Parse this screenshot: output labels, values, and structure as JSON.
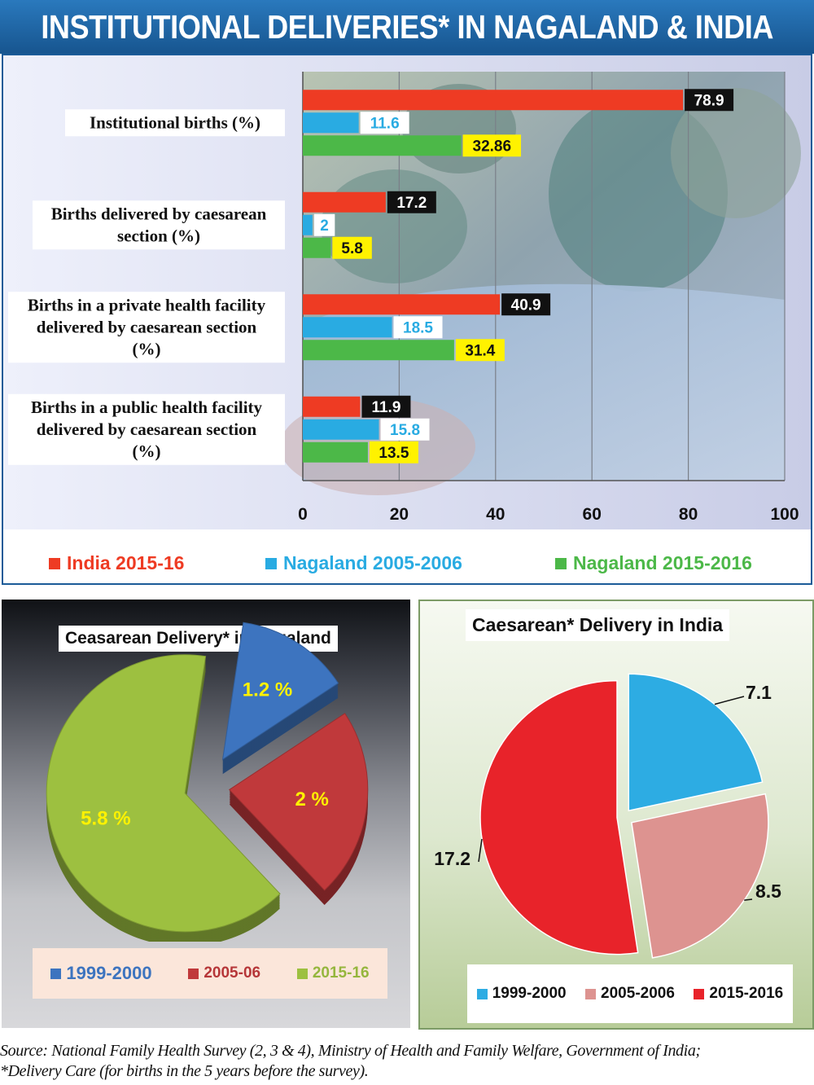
{
  "title": "INSTITUTIONAL DELIVERIES* IN NAGALAND & INDIA",
  "colors": {
    "india": "#ee3b23",
    "nagaland_2005": "#29abe2",
    "nagaland_2015": "#4cb848",
    "title_bar": "#1f68a8"
  },
  "chart_data": [
    {
      "type": "bar",
      "orientation": "horizontal",
      "categories": [
        "Institutional births  (%)",
        "Births delivered by caesarean section (%)",
        "Births in a private health facility delivered by caesarean section (%)",
        "Births in a public health facility delivered by caesarean section (%)"
      ],
      "category_lines": [
        [
          "Institutional births  (%)"
        ],
        [
          "Births delivered by caesarean",
          "section (%)"
        ],
        [
          "Births in a private health facility",
          "delivered by caesarean section",
          "(%)"
        ],
        [
          "Births in a public health facility",
          "delivered by caesarean section",
          "(%)"
        ]
      ],
      "series": [
        {
          "name": "India 2015-16",
          "values": [
            78.9,
            17.2,
            40.9,
            11.9
          ]
        },
        {
          "name": "Nagaland 2005-2006",
          "values": [
            11.6,
            2,
            18.5,
            15.8
          ]
        },
        {
          "name": "Nagaland 2015-2016",
          "values": [
            32.86,
            5.8,
            31.4,
            13.5
          ]
        }
      ],
      "value_labels": [
        [
          "78.9",
          "17.2",
          "40.9",
          "11.9"
        ],
        [
          "11.6",
          "2",
          "18.5",
          "15.8"
        ],
        [
          "32.86",
          "5.8",
          "31.4",
          "13.5"
        ]
      ],
      "xlim": [
        0,
        100
      ],
      "xticks": [
        "0",
        "20",
        "40",
        "60",
        "80",
        "100"
      ],
      "grid": true,
      "legend_position": "bottom"
    },
    {
      "type": "pie",
      "title": "Ceasarean Delivery* in Nagaland",
      "categories": [
        "1999-2000",
        "2005-06",
        "2015-16"
      ],
      "values": [
        1.2,
        2,
        5.8
      ],
      "labels": [
        "1.2 %",
        "2 %",
        "5.8 %"
      ],
      "colors": [
        "#3d74bf",
        "#c0393b",
        "#9dc040"
      ],
      "style": "3d exploded",
      "legend_position": "bottom"
    },
    {
      "type": "pie",
      "title": "Caesarean* Delivery in India",
      "categories": [
        "1999-2000",
        "2005-2006",
        "2015-2016"
      ],
      "values": [
        7.1,
        8.5,
        17.2
      ],
      "labels": [
        "7.1",
        "8.5",
        "17.2"
      ],
      "colors": [
        "#2dace3",
        "#dd9390",
        "#e8232a"
      ],
      "style": "exploded",
      "legend_position": "bottom"
    }
  ],
  "source_lines": [
    "Source: National Family Health Survey (2, 3 & 4), Ministry of Health and Family Welfare, Government of India;",
    "*Delivery Care (for births in the 5 years before the survey)."
  ]
}
